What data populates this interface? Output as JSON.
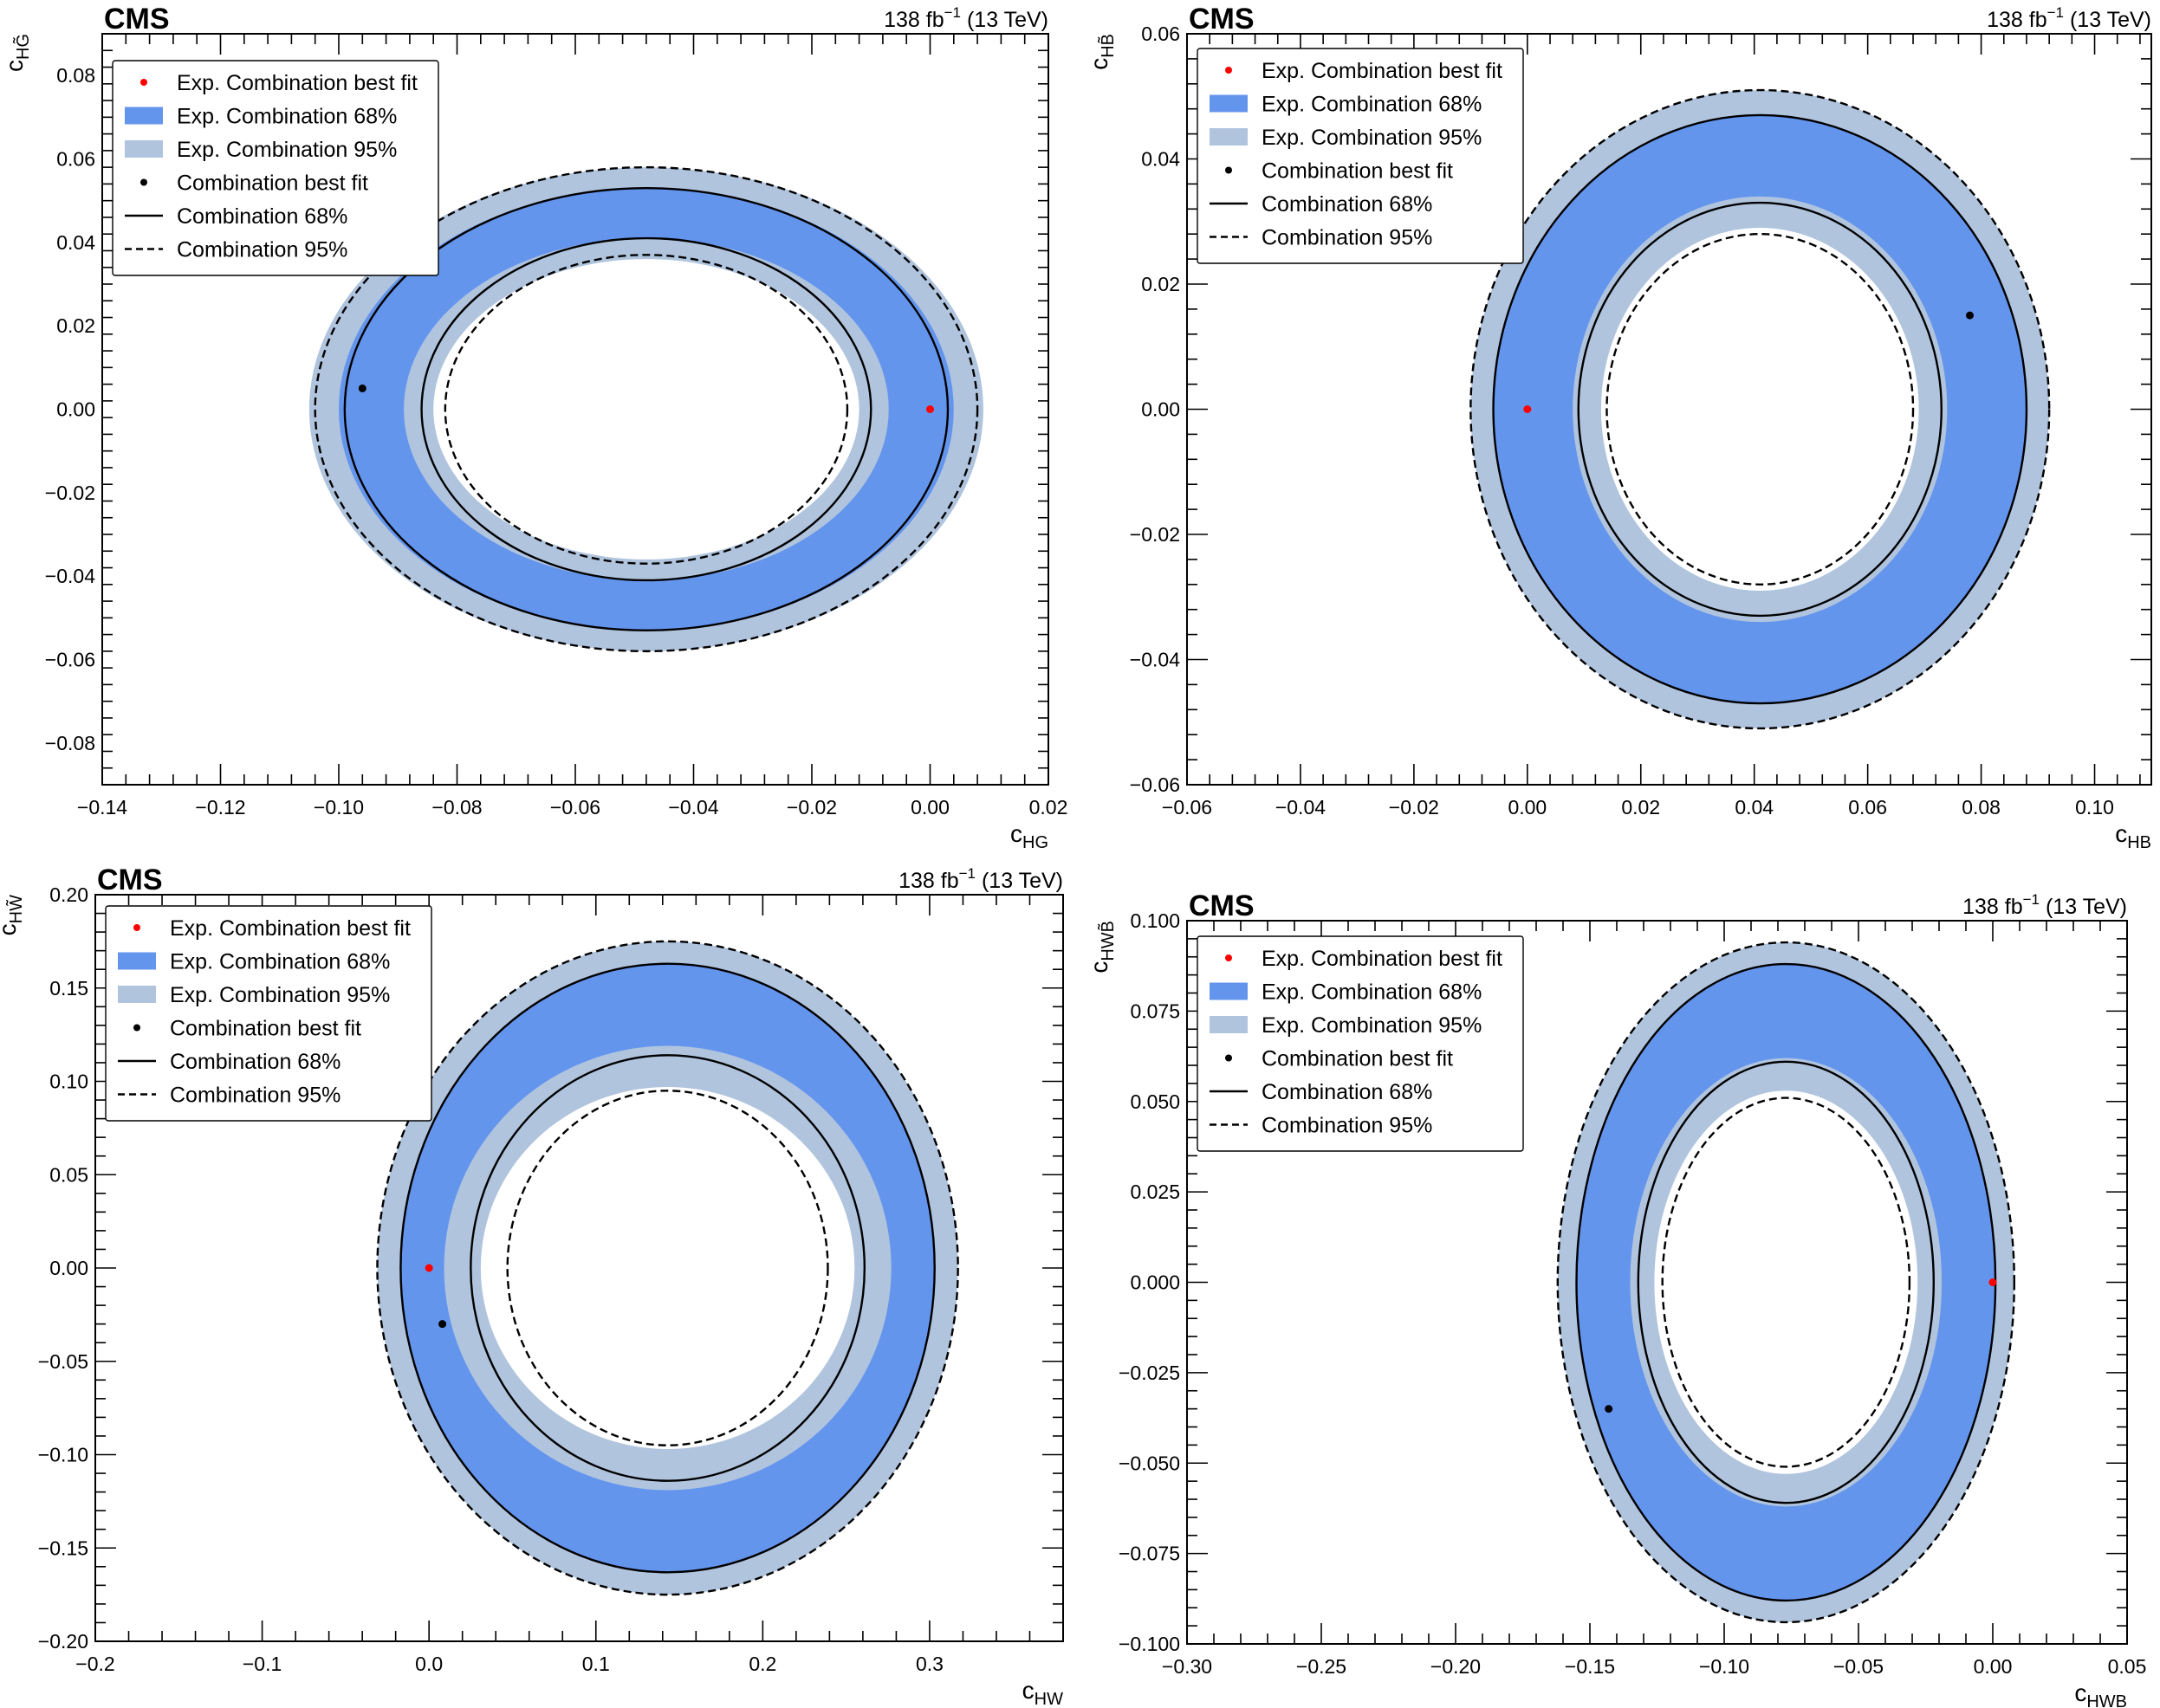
{
  "figure": {
    "experiment": "CMS",
    "lumi_label": "138 fb",
    "lumi_sup": "−1",
    "energy_label": " (13 TeV)"
  },
  "legend_labels": {
    "exp_best": "Exp. Combination best fit",
    "exp_68": "Exp. Combination 68%",
    "exp_95": "Exp. Combination 95%",
    "obs_best": "Combination best fit",
    "obs_68": "Combination 68%",
    "obs_95": "Combination 95%"
  },
  "colors": {
    "exp68": "#6495ed",
    "exp95": "#b0c4de",
    "exp_best": "#ff0000",
    "obs": "#000000"
  },
  "chart_data": [
    {
      "type": "scatter",
      "id": "hg",
      "xlabel": {
        "base": "c",
        "sub": "HG"
      },
      "ylabel": {
        "base": "c",
        "sub": "HG̃"
      },
      "xlim": [
        -0.14,
        0.02
      ],
      "ylim": [
        -0.09,
        0.09
      ],
      "xticks": [
        -0.14,
        -0.12,
        -0.1,
        -0.08,
        -0.06,
        -0.04,
        -0.02,
        0.0,
        0.02
      ],
      "xtick_labels": [
        "−0.14",
        "−0.12",
        "−0.10",
        "−0.08",
        "−0.06",
        "−0.04",
        "−0.02",
        "0.00",
        "0.02"
      ],
      "yticks": [
        -0.08,
        -0.06,
        -0.04,
        -0.02,
        0.0,
        0.02,
        0.04,
        0.06,
        0.08
      ],
      "ytick_labels": [
        "−0.08",
        "−0.06",
        "−0.04",
        "−0.02",
        "0.00",
        "0.02",
        "0.04",
        "0.06",
        "0.08"
      ],
      "exp_best": [
        0.0,
        0.0
      ],
      "obs_best": [
        -0.096,
        0.005
      ],
      "center": [
        -0.048,
        0.0
      ],
      "exp95_outer": [
        0.057,
        0.058
      ],
      "exp68_outer": [
        0.052,
        0.053
      ],
      "exp68_inner": [
        0.041,
        0.041
      ],
      "exp95_inner": [
        0.036,
        0.036
      ],
      "obs95_outer": [
        0.056,
        0.058
      ],
      "obs68_outer": [
        0.051,
        0.053
      ],
      "obs68_inner": [
        0.038,
        0.041
      ],
      "obs95_inner": [
        0.034,
        0.037
      ]
    },
    {
      "type": "scatter",
      "id": "hb",
      "xlabel": {
        "base": "c",
        "sub": "HB"
      },
      "ylabel": {
        "base": "c",
        "sub": "HB̃"
      },
      "xlim": [
        -0.06,
        0.11
      ],
      "ylim": [
        -0.06,
        0.06
      ],
      "xticks": [
        -0.06,
        -0.04,
        -0.02,
        0.0,
        0.02,
        0.04,
        0.06,
        0.08,
        0.1
      ],
      "xtick_labels": [
        "−0.06",
        "−0.04",
        "−0.02",
        "0.00",
        "0.02",
        "0.04",
        "0.06",
        "0.08",
        "0.10"
      ],
      "yticks": [
        -0.06,
        -0.04,
        -0.02,
        0.0,
        0.02,
        0.04,
        0.06
      ],
      "ytick_labels": [
        "−0.06",
        "−0.04",
        "−0.02",
        "0.00",
        "0.02",
        "0.04",
        "0.06"
      ],
      "exp_best": [
        0.0,
        0.0
      ],
      "obs_best": [
        0.078,
        0.015
      ],
      "center": [
        0.041,
        0.0
      ],
      "exp95_outer": [
        0.051,
        0.051
      ],
      "exp68_outer": [
        0.047,
        0.047
      ],
      "exp68_inner": [
        0.033,
        0.034
      ],
      "exp95_inner": [
        0.028,
        0.029
      ],
      "obs95_outer": [
        0.051,
        0.051
      ],
      "obs68_outer": [
        0.047,
        0.047
      ],
      "obs68_inner": [
        0.032,
        0.033
      ],
      "obs95_inner": [
        0.027,
        0.028
      ]
    },
    {
      "type": "scatter",
      "id": "hw",
      "xlabel": {
        "base": "c",
        "sub": "HW"
      },
      "ylabel": {
        "base": "c",
        "sub": "HW̃"
      },
      "xlim": [
        -0.2,
        0.38
      ],
      "ylim": [
        -0.2,
        0.2
      ],
      "xticks": [
        -0.2,
        -0.1,
        0.0,
        0.1,
        0.2,
        0.3
      ],
      "xtick_labels": [
        "−0.2",
        "−0.1",
        "0.0",
        "0.1",
        "0.2",
        "0.3"
      ],
      "yticks": [
        -0.2,
        -0.15,
        -0.1,
        -0.05,
        0.0,
        0.05,
        0.1,
        0.15,
        0.2
      ],
      "ytick_labels": [
        "−0.20",
        "−0.15",
        "−0.10",
        "−0.05",
        "0.00",
        "0.05",
        "0.10",
        "0.15",
        "0.20"
      ],
      "exp_best": [
        0.0,
        0.0
      ],
      "obs_best": [
        0.008,
        -0.03
      ],
      "center": [
        0.143,
        0.0
      ],
      "exp95_outer": [
        0.174,
        0.175
      ],
      "exp68_outer": [
        0.16,
        0.163
      ],
      "exp68_inner": [
        0.134,
        0.119
      ],
      "exp95_inner": [
        0.112,
        0.097
      ],
      "obs95_outer": [
        0.174,
        0.175
      ],
      "obs68_outer": [
        0.16,
        0.163
      ],
      "obs68_inner": [
        0.118,
        0.114
      ],
      "obs95_inner": [
        0.096,
        0.095
      ]
    },
    {
      "type": "scatter",
      "id": "hwb",
      "xlabel": {
        "base": "c",
        "sub": "HWB"
      },
      "ylabel": {
        "base": "c",
        "sub": "HWB̃"
      },
      "xlim": [
        -0.3,
        0.05
      ],
      "ylim": [
        -0.1,
        0.1
      ],
      "xticks": [
        -0.3,
        -0.25,
        -0.2,
        -0.15,
        -0.1,
        -0.05,
        0.0,
        0.05
      ],
      "xtick_labels": [
        "−0.30",
        "−0.25",
        "−0.20",
        "−0.15",
        "−0.10",
        "−0.05",
        "0.00",
        "0.05"
      ],
      "yticks": [
        -0.1,
        -0.075,
        -0.05,
        -0.025,
        0.0,
        0.025,
        0.05,
        0.075,
        0.1
      ],
      "ytick_labels": [
        "−0.100",
        "−0.075",
        "−0.050",
        "−0.025",
        "0.000",
        "0.025",
        "0.050",
        "0.075",
        "0.100"
      ],
      "exp_best": [
        0.0,
        0.0
      ],
      "obs_best": [
        -0.143,
        -0.035
      ],
      "center": [
        -0.077,
        0.0
      ],
      "exp95_outer": [
        0.085,
        0.094
      ],
      "exp68_outer": [
        0.078,
        0.088
      ],
      "exp68_inner": [
        0.058,
        0.062
      ],
      "exp95_inner": [
        0.049,
        0.053
      ],
      "obs95_outer": [
        0.085,
        0.094
      ],
      "obs68_outer": [
        0.078,
        0.088
      ],
      "obs68_inner": [
        0.055,
        0.061
      ],
      "obs95_inner": [
        0.046,
        0.051
      ]
    }
  ]
}
